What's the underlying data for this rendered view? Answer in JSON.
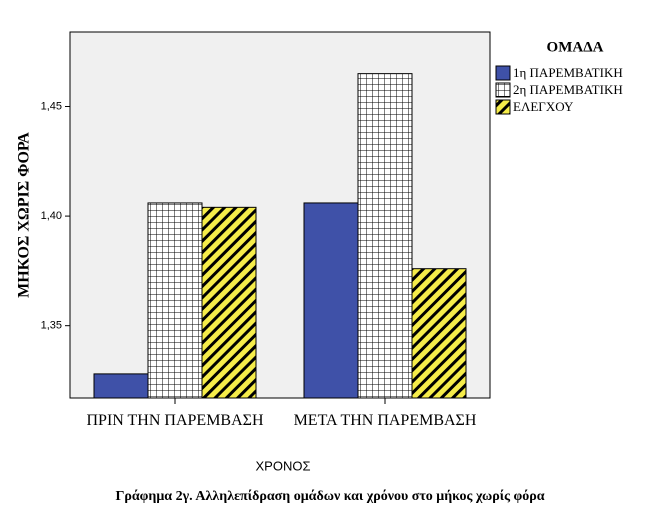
{
  "chart_data": {
    "type": "bar",
    "y_label": "ΜΗΚΟΣ ΧΩΡΙΣ ΦΟΡΑ",
    "x_label": "ΧΡΟΝΟΣ",
    "caption": "Γράφημα 2γ. Αλληλεπίδραση ομάδων και χρόνου στο μήκος χωρίς φόρα",
    "legend_title": "ΟΜΑΔΑ",
    "legend_position": "right",
    "categories": [
      "ΠΡΙΝ ΤΗΝ ΠΑΡΕΜΒΑΣΗ",
      "ΜΕΤΑ ΤΗΝ ΠΑΡΕΜΒΑΣΗ"
    ],
    "series": [
      {
        "name": "1η ΠΑΡΕΜΒΑΤΙΚΗ",
        "color": "#3f51a8",
        "pattern": "solid",
        "values": [
          1.328,
          1.406
        ]
      },
      {
        "name": "2η ΠΑΡΕΜΒΑΤΙΚΗ",
        "color": "#ffffff",
        "pattern": "grid",
        "values": [
          1.406,
          1.465
        ]
      },
      {
        "name": "ΕΛΕΓΧΟΥ",
        "color": "#f5ec4a",
        "pattern": "stripes",
        "values": [
          1.404,
          1.376
        ]
      }
    ],
    "ylim": [
      1.317,
      1.484
    ],
    "yticks": [
      {
        "value": 1.35,
        "label": "1,35"
      },
      {
        "value": 1.4,
        "label": "1,40"
      },
      {
        "value": 1.45,
        "label": "1,45"
      }
    ]
  }
}
